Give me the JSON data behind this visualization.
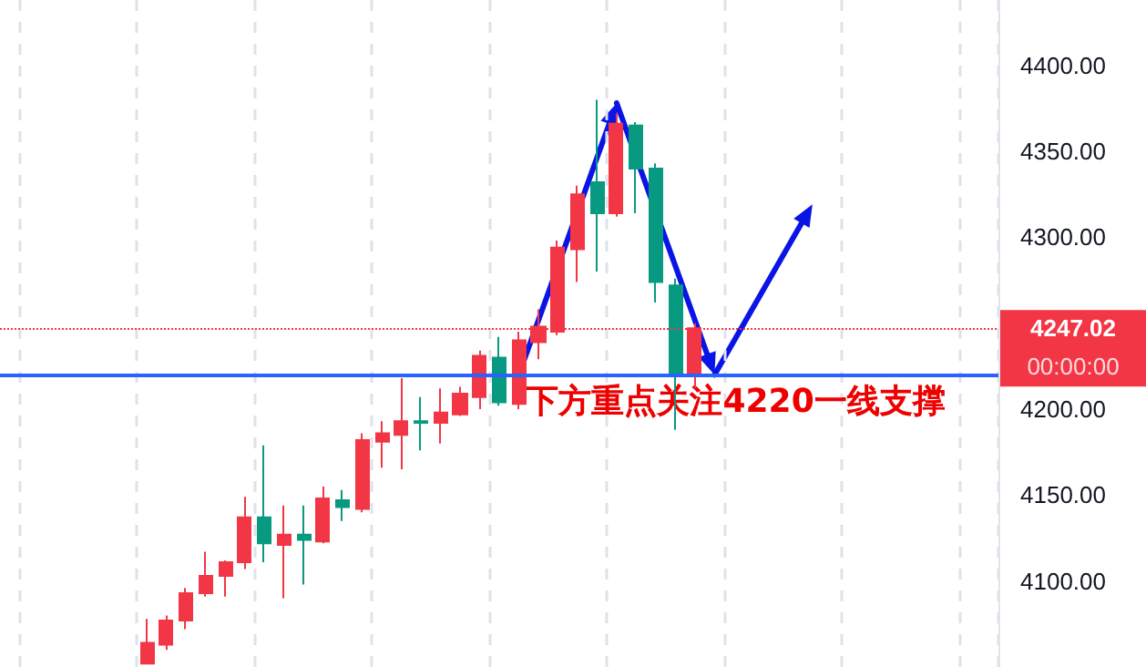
{
  "chart_data": {
    "type": "candlestick",
    "categories": [
      null,
      null,
      null,
      null,
      null,
      null,
      null,
      null,
      null,
      null,
      null,
      null,
      null,
      null,
      null,
      null,
      null,
      null,
      null,
      null,
      null,
      null,
      null,
      null,
      null,
      null,
      null,
      null,
      null,
      null,
      null,
      null,
      null,
      null,
      null,
      null,
      null,
      null,
      null,
      null,
      null,
      null,
      null,
      null,
      null,
      null,
      null,
      null,
      null,
      null,
      null
    ],
    "ohlc": [
      null,
      null,
      null,
      null,
      null,
      null,
      null,
      [
        4052,
        4078,
        4052,
        4064
      ],
      [
        4063,
        4080,
        4060,
        4077
      ],
      [
        4077,
        4096,
        4072,
        4093
      ],
      [
        4093,
        4117,
        4091,
        4103
      ],
      [
        4103,
        4112,
        4091,
        4111
      ],
      [
        4111,
        4149,
        4107,
        4137
      ],
      [
        4137,
        4179,
        4111,
        4122
      ],
      [
        4121,
        4144,
        4090,
        4127
      ],
      [
        4127,
        4144,
        4098,
        4124
      ],
      [
        4123,
        4155,
        4122,
        4148
      ],
      [
        4147,
        4153,
        4135,
        4143
      ],
      [
        4142,
        4186,
        4140,
        4182
      ],
      [
        4181,
        4193,
        4166,
        4186
      ],
      [
        4185,
        4218,
        4165,
        4193
      ],
      [
        4193,
        4207,
        4176,
        4192
      ],
      [
        4192,
        4212,
        4180,
        4198
      ],
      [
        4197,
        4213,
        4196,
        4209
      ],
      [
        4207,
        4234,
        4200,
        4231
      ],
      [
        4230,
        4242,
        4202,
        4204
      ],
      [
        4203,
        4245,
        4200,
        4240
      ],
      [
        4239,
        4258,
        4229,
        4248
      ],
      [
        4245,
        4298,
        4243,
        4294
      ],
      [
        4293,
        4330,
        4274,
        4325
      ],
      [
        4332,
        4380,
        4280,
        4314
      ],
      [
        4314,
        4372,
        4312,
        4366
      ],
      [
        4365,
        4367,
        4314,
        4340
      ],
      [
        4340,
        4343,
        4262,
        4274
      ],
      [
        4272,
        4276,
        4188,
        4221
      ],
      [
        4221,
        4250,
        4212,
        4247.02
      ],
      null,
      null,
      null,
      null,
      null,
      null,
      null,
      null,
      null,
      null,
      null,
      null,
      null,
      null,
      null
    ],
    "colors": [
      null,
      null,
      null,
      null,
      null,
      null,
      null,
      "#f23645",
      "#f23645",
      "#f23645",
      "#f23645",
      "#f23645",
      "#f23645",
      "#089981",
      "#f23645",
      "#089981",
      "#f23645",
      "#089981",
      "#f23645",
      "#f23645",
      "#f23645",
      "#089981",
      "#f23645",
      "#f23645",
      "#f23645",
      "#089981",
      "#f23645",
      "#f23645",
      "#f23645",
      "#f23645",
      "#089981",
      "#f23645",
      "#089981",
      "#089981",
      "#089981",
      "#f23645",
      null,
      null,
      null,
      null,
      null,
      null,
      null,
      null,
      null,
      null,
      null,
      null,
      null,
      null,
      null
    ],
    "ylim": [
      4050,
      4438
    ],
    "yticks": [
      {
        "value": 4100,
        "label": "4100.00"
      },
      {
        "value": 4150,
        "label": "4150.00"
      },
      {
        "value": 4200,
        "label": "4200.00"
      },
      {
        "value": 4300,
        "label": "4300.00"
      },
      {
        "value": 4350,
        "label": "4350.00"
      },
      {
        "value": 4400,
        "label": "4400.00"
      }
    ],
    "tick_labels": "y",
    "grid": "x",
    "ref_lines": [
      {
        "axis": "y",
        "value": 4220,
        "color": "#2962ff",
        "line_style": "solid"
      },
      {
        "axis": "y",
        "value": 4247.02,
        "label": "4247.02",
        "color": "#f23645",
        "line_style": "dotted"
      }
    ],
    "annotations": [
      {
        "text": "下方重点关注4220一线支撑",
        "y": 4220
      },
      "00:00:00"
    ]
  }
}
